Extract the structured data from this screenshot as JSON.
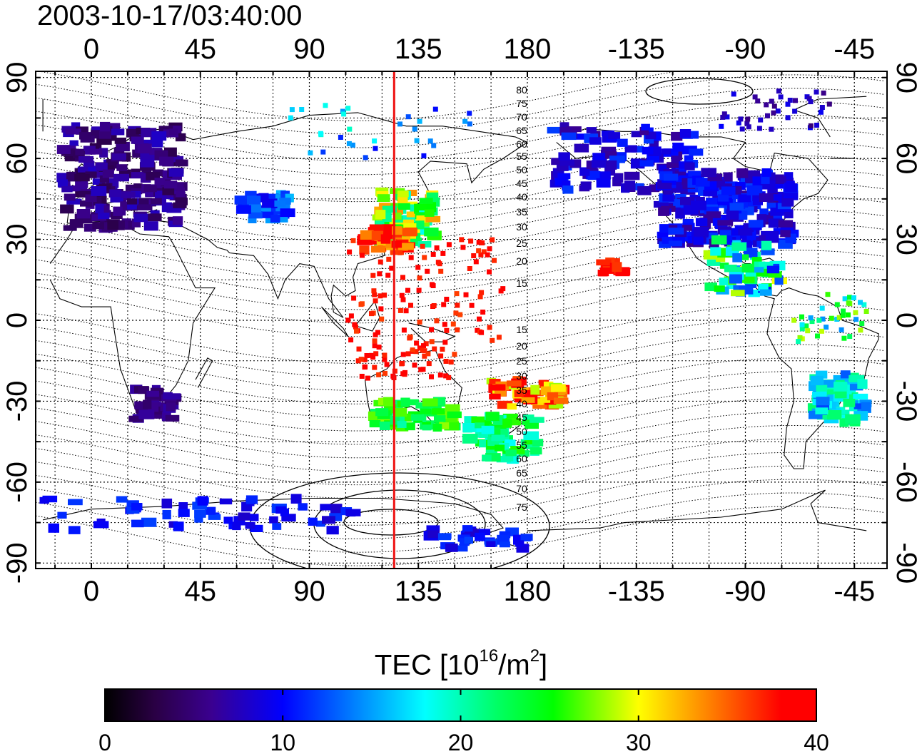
{
  "title": "2003-10-17/03:40:00",
  "map": {
    "longitude_ticks": [
      "0",
      "45",
      "90",
      "135",
      "180",
      "-135",
      "-90",
      "-45"
    ],
    "latitude_ticks": [
      "90",
      "60",
      "30",
      "0",
      "-30",
      "-60",
      "-90"
    ],
    "contour_labels_north": [
      "80",
      "75",
      "70",
      "65",
      "60",
      "55",
      "50",
      "45",
      "40",
      "35",
      "30",
      "25",
      "20",
      "15"
    ],
    "contour_labels_south": [
      "15",
      "20",
      "25",
      "30",
      "35",
      "40",
      "45",
      "50",
      "55",
      "60",
      "65",
      "70",
      "75"
    ],
    "meridian_line_longitude": 125,
    "meridian_line_color": "#ee1111"
  },
  "colorbar": {
    "label_prefix": "TEC  [10",
    "label_exp1": "16",
    "label_mid": "/m",
    "label_exp2": "2",
    "label_suffix": "]",
    "min": 0,
    "max": 40,
    "ticks": [
      "0",
      "10",
      "20",
      "30",
      "40"
    ]
  }
}
